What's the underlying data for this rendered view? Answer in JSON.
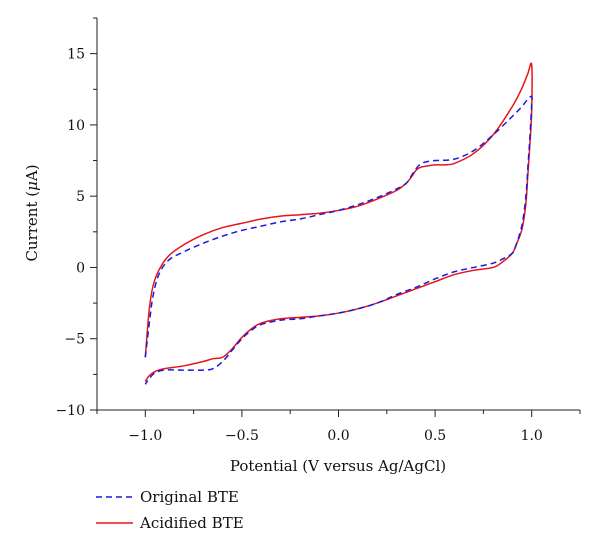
{
  "chart_data": {
    "type": "line",
    "title": "",
    "xlabel": "Potential (V versus Ag/AgCl)",
    "ylabel_prefix": "Current (",
    "ylabel_unit_greek": "μ",
    "ylabel_suffix": "A)",
    "xlim": [
      -1.25,
      1.25
    ],
    "ylim": [
      -10,
      17.5
    ],
    "x_ticks": [
      -1.0,
      -0.5,
      0.0,
      0.5,
      1.0
    ],
    "x_tick_labels": [
      "−1.0",
      "−0.5",
      "0.0",
      "0.5",
      "1.0"
    ],
    "y_ticks": [
      -10,
      -5,
      0,
      5,
      10,
      15
    ],
    "y_tick_labels": [
      "−10",
      "−5",
      "0",
      "5",
      "10",
      "15"
    ],
    "grid": false,
    "legend_position": "bottom-left, below plot",
    "series": [
      {
        "name": "Original BTE",
        "color": "#1a1adb",
        "style": "dashed",
        "x": [
          -1.0,
          -0.98,
          -0.96,
          -0.93,
          -0.88,
          -0.8,
          -0.7,
          -0.6,
          -0.5,
          -0.4,
          -0.3,
          -0.2,
          -0.1,
          0.0,
          0.1,
          0.2,
          0.3,
          0.35,
          0.38,
          0.4,
          0.42,
          0.45,
          0.5,
          0.6,
          0.7,
          0.8,
          0.9,
          0.95,
          0.98,
          1.0,
          1.0,
          0.99,
          0.98,
          0.97,
          0.95,
          0.92,
          0.9,
          0.85,
          0.8,
          0.7,
          0.6,
          0.5,
          0.4,
          0.3,
          0.2,
          0.1,
          0.0,
          -0.1,
          -0.2,
          -0.3,
          -0.4,
          -0.45,
          -0.5,
          -0.55,
          -0.6,
          -0.65,
          -0.7,
          -0.8,
          -0.9,
          -0.95,
          -0.98,
          -1.0
        ],
        "y": [
          -6.3,
          -4.0,
          -2.0,
          -0.5,
          0.5,
          1.1,
          1.7,
          2.2,
          2.6,
          2.9,
          3.2,
          3.4,
          3.7,
          4.0,
          4.4,
          4.9,
          5.5,
          5.9,
          6.5,
          6.9,
          7.2,
          7.4,
          7.5,
          7.6,
          8.2,
          9.3,
          10.6,
          11.3,
          11.8,
          12.0,
          11.5,
          9.0,
          7.0,
          5.0,
          3.0,
          1.6,
          1.0,
          0.6,
          0.3,
          0.0,
          -0.3,
          -0.8,
          -1.4,
          -1.9,
          -2.5,
          -2.9,
          -3.2,
          -3.4,
          -3.6,
          -3.7,
          -4.0,
          -4.4,
          -5.0,
          -5.8,
          -6.6,
          -7.1,
          -7.2,
          -7.2,
          -7.2,
          -7.4,
          -7.8,
          -8.2
        ]
      },
      {
        "name": "Acidified BTE",
        "color": "#e8141b",
        "style": "solid",
        "x": [
          -1.0,
          -0.98,
          -0.96,
          -0.93,
          -0.88,
          -0.8,
          -0.7,
          -0.6,
          -0.5,
          -0.4,
          -0.3,
          -0.2,
          -0.1,
          0.0,
          0.1,
          0.2,
          0.3,
          0.35,
          0.38,
          0.4,
          0.42,
          0.45,
          0.5,
          0.55,
          0.6,
          0.7,
          0.8,
          0.9,
          0.95,
          0.98,
          1.0,
          1.0,
          0.99,
          0.98,
          0.97,
          0.95,
          0.92,
          0.9,
          0.85,
          0.8,
          0.7,
          0.6,
          0.5,
          0.4,
          0.3,
          0.2,
          0.1,
          0.0,
          -0.1,
          -0.2,
          -0.3,
          -0.4,
          -0.45,
          -0.5,
          -0.55,
          -0.6,
          -0.65,
          -0.7,
          -0.8,
          -0.9,
          -0.95,
          -0.98,
          -1.0
        ],
        "y": [
          -6.3,
          -3.0,
          -1.3,
          -0.2,
          0.8,
          1.6,
          2.3,
          2.8,
          3.1,
          3.4,
          3.6,
          3.7,
          3.8,
          4.0,
          4.3,
          4.8,
          5.4,
          5.9,
          6.4,
          6.8,
          7.0,
          7.1,
          7.2,
          7.2,
          7.3,
          8.0,
          9.3,
          11.3,
          12.6,
          13.6,
          14.2,
          11.0,
          8.5,
          6.5,
          4.5,
          2.7,
          1.6,
          1.0,
          0.4,
          0.0,
          -0.2,
          -0.5,
          -1.0,
          -1.5,
          -2.0,
          -2.5,
          -2.9,
          -3.2,
          -3.4,
          -3.5,
          -3.6,
          -3.9,
          -4.3,
          -4.9,
          -5.7,
          -6.3,
          -6.4,
          -6.6,
          -6.9,
          -7.1,
          -7.3,
          -7.6,
          -8.0
        ]
      }
    ]
  }
}
